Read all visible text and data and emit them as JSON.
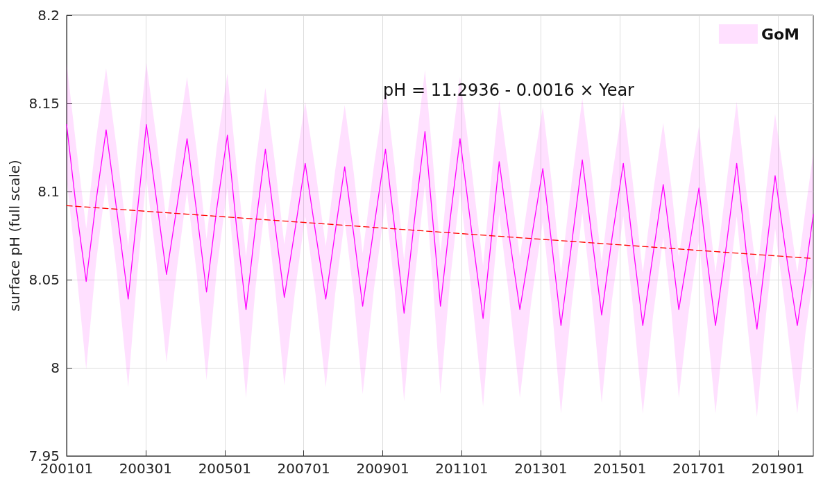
{
  "chart_data": {
    "type": "line",
    "ylabel": "surface pH (full scale)",
    "annotations": [
      "pH = 11.2936 - 0.0016 × Year"
    ],
    "xlim": [
      "2001-01-01",
      "2019-11-24"
    ],
    "xticks": [
      {
        "value": "2001-01",
        "label": "200101"
      },
      {
        "value": "2003-01",
        "label": "200301"
      },
      {
        "value": "2005-01",
        "label": "200501"
      },
      {
        "value": "2007-01",
        "label": "200701"
      },
      {
        "value": "2009-01",
        "label": "200901"
      },
      {
        "value": "2011-01",
        "label": "201101"
      },
      {
        "value": "2013-01",
        "label": "201301"
      },
      {
        "value": "2015-01",
        "label": "201501"
      },
      {
        "value": "2017-01",
        "label": "201701"
      },
      {
        "value": "2019-01",
        "label": "201901"
      }
    ],
    "ylim": [
      7.95,
      8.2
    ],
    "yticks": [
      7.95,
      8,
      8.05,
      8.1,
      8.15,
      8.2
    ],
    "grid": true,
    "legend": "top right",
    "series": [
      {
        "name": "GoM",
        "color": "#ff00ff",
        "x": [
          "2001-01-01",
          "2001-04-01",
          "2001-07-01",
          "2001-10-01",
          "2002-01-01",
          "2002-04-12",
          "2002-07-24",
          "2002-10-19",
          "2003-01-08",
          "2003-04-12",
          "2003-07-13",
          "2003-10-19",
          "2004-01-19",
          "2004-04-20",
          "2004-07-17",
          "2004-10-19",
          "2005-01-26",
          "2005-04-20",
          "2005-07-17",
          "2005-10-12",
          "2006-01-12",
          "2006-04-09",
          "2006-07-06",
          "2006-10-12",
          "2007-01-15",
          "2007-04-20",
          "2007-07-24",
          "2007-10-19",
          "2008-01-15",
          "2008-04-09",
          "2008-06-29",
          "2008-10-12",
          "2009-01-26",
          "2009-04-20",
          "2009-07-17",
          "2009-10-19",
          "2010-01-26",
          "2010-04-09",
          "2010-06-18",
          "2010-09-13",
          "2010-12-16",
          "2011-04-01",
          "2011-07-17",
          "2011-10-01",
          "2011-12-13",
          "2012-03-14",
          "2012-06-21",
          "2012-10-05",
          "2013-01-19",
          "2013-04-12",
          "2013-07-06",
          "2013-10-12",
          "2014-01-19",
          "2014-04-20",
          "2014-07-17",
          "2014-10-19",
          "2015-02-02",
          "2015-05-01",
          "2015-08-01",
          "2015-11-03",
          "2016-02-06",
          "2016-04-20",
          "2016-06-29",
          "2016-10-01",
          "2017-01-01",
          "2017-03-14",
          "2017-06-03",
          "2017-09-13",
          "2017-12-16",
          "2018-03-14",
          "2018-06-21",
          "2018-09-13",
          "2018-12-06",
          "2019-03-14",
          "2019-06-29",
          "2019-09-13",
          "2019-11-24"
        ],
        "values": [
          8.138,
          8.09,
          8.049,
          8.095,
          8.135,
          8.088,
          8.039,
          8.09,
          8.138,
          8.095,
          8.053,
          8.092,
          8.13,
          8.087,
          8.043,
          8.09,
          8.132,
          8.08,
          8.033,
          8.08,
          8.124,
          8.082,
          8.04,
          8.078,
          8.116,
          8.077,
          8.039,
          8.077,
          8.114,
          8.075,
          8.035,
          8.08,
          8.124,
          8.08,
          8.031,
          8.083,
          8.134,
          8.083,
          8.035,
          8.083,
          8.13,
          8.078,
          8.028,
          8.073,
          8.117,
          8.075,
          8.033,
          8.073,
          8.113,
          8.07,
          8.024,
          8.07,
          8.118,
          8.073,
          8.03,
          8.073,
          8.116,
          8.07,
          8.024,
          8.064,
          8.104,
          8.068,
          8.033,
          8.068,
          8.102,
          8.063,
          8.024,
          8.07,
          8.116,
          8.066,
          8.022,
          8.065,
          8.109,
          8.066,
          8.024,
          8.055,
          8.087
        ],
        "lower": [
          8.108,
          8.055,
          7.999,
          8.06,
          8.105,
          8.053,
          7.989,
          8.055,
          8.108,
          8.06,
          8.003,
          8.057,
          8.1,
          8.052,
          7.993,
          8.055,
          8.102,
          8.045,
          7.983,
          8.045,
          8.094,
          8.047,
          7.99,
          8.043,
          8.086,
          8.042,
          7.989,
          8.042,
          8.084,
          8.04,
          7.985,
          8.045,
          8.094,
          8.045,
          7.981,
          8.048,
          8.104,
          8.048,
          7.985,
          8.048,
          8.1,
          8.043,
          7.978,
          8.038,
          8.087,
          8.04,
          7.983,
          8.038,
          8.083,
          8.035,
          7.974,
          8.035,
          8.088,
          8.038,
          7.98,
          8.038,
          8.086,
          8.035,
          7.974,
          8.029,
          8.074,
          8.033,
          7.983,
          8.033,
          8.072,
          8.028,
          7.974,
          8.035,
          8.086,
          8.031,
          7.972,
          8.03,
          8.079,
          8.031,
          7.974,
          8.02,
          8.052
        ],
        "upper": [
          8.173,
          8.125,
          8.079,
          8.13,
          8.17,
          8.123,
          8.069,
          8.125,
          8.173,
          8.13,
          8.083,
          8.127,
          8.165,
          8.122,
          8.073,
          8.125,
          8.167,
          8.115,
          8.063,
          8.115,
          8.159,
          8.117,
          8.07,
          8.113,
          8.151,
          8.112,
          8.069,
          8.112,
          8.149,
          8.11,
          8.065,
          8.115,
          8.159,
          8.115,
          8.061,
          8.118,
          8.169,
          8.118,
          8.065,
          8.118,
          8.165,
          8.113,
          8.058,
          8.108,
          8.152,
          8.11,
          8.063,
          8.108,
          8.148,
          8.105,
          8.054,
          8.105,
          8.153,
          8.108,
          8.06,
          8.108,
          8.151,
          8.105,
          8.054,
          8.099,
          8.139,
          8.103,
          8.063,
          8.103,
          8.137,
          8.098,
          8.054,
          8.105,
          8.151,
          8.101,
          8.052,
          8.1,
          8.144,
          8.101,
          8.054,
          8.09,
          8.122
        ]
      },
      {
        "type": "line",
        "color": "#ff0000",
        "line_style": "dashed",
        "x": [
          "2001-01-01",
          "2019-11-24"
        ],
        "values": [
          8.092,
          8.062
        ]
      }
    ]
  }
}
